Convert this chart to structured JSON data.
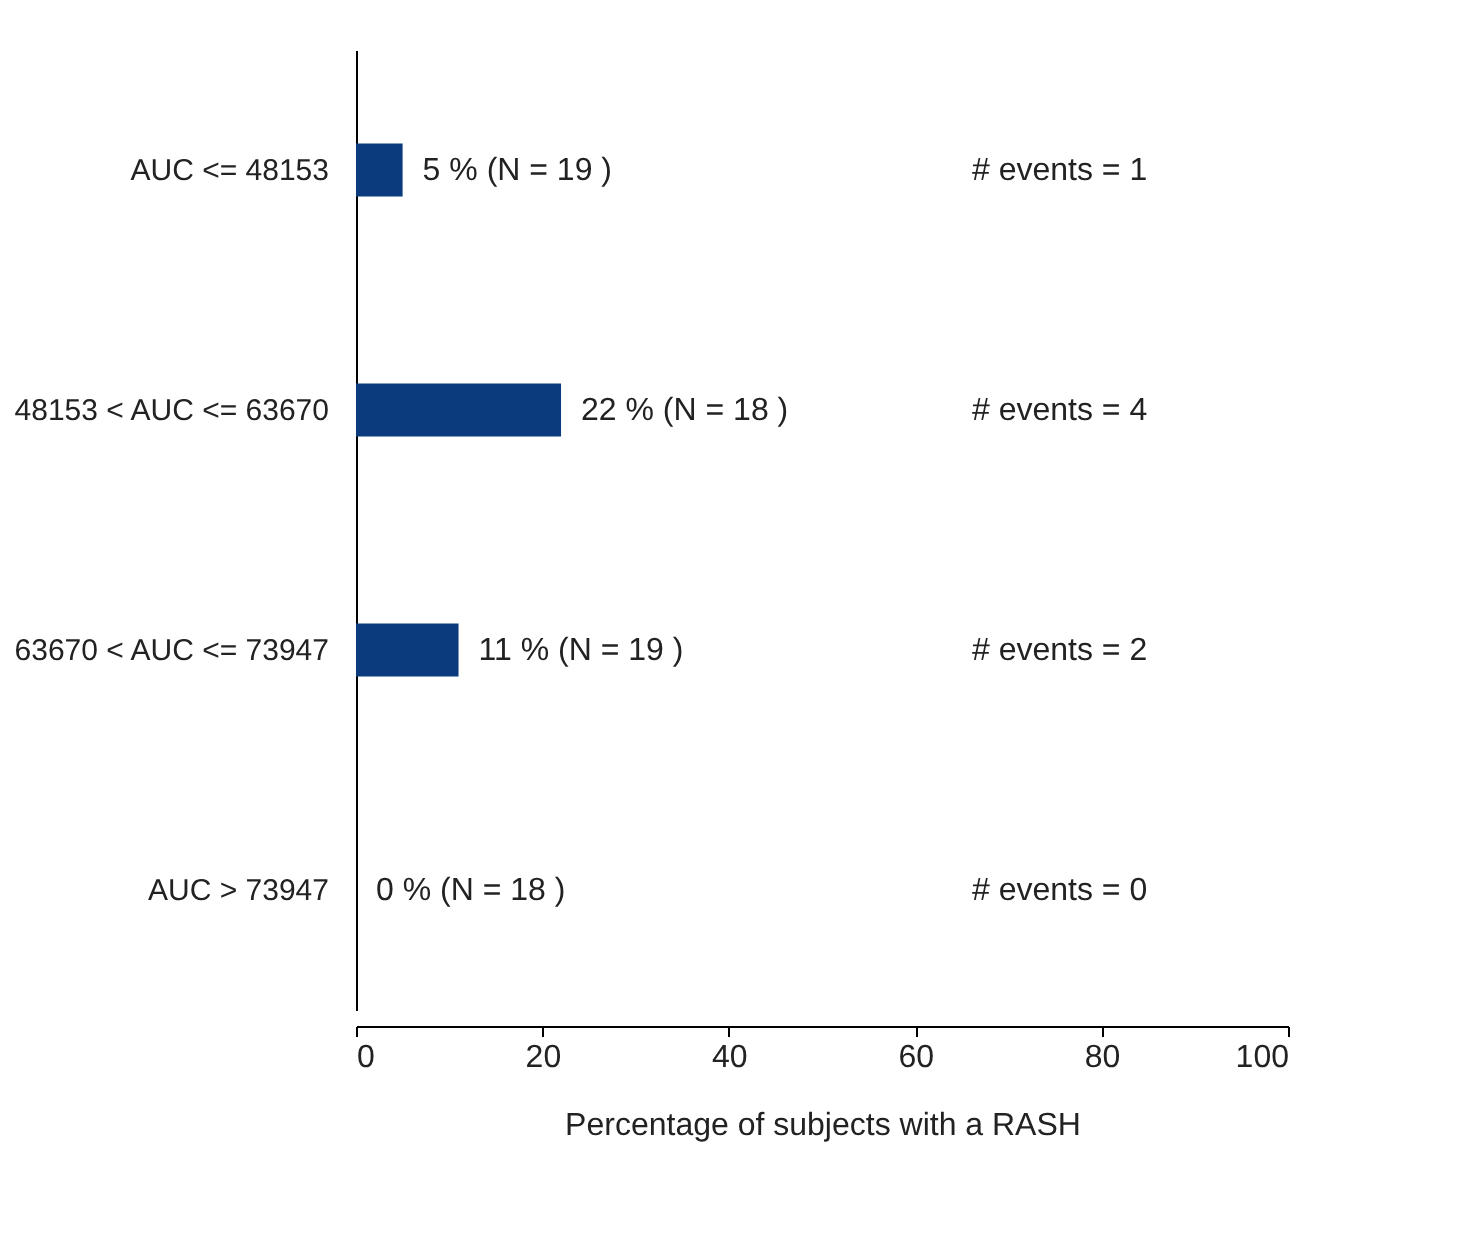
{
  "chart_data": {
    "type": "bar",
    "orientation": "horizontal",
    "categories": [
      "AUC <= 48153",
      "48153 < AUC <= 63670",
      "63670 < AUC <= 73947",
      "AUC > 73947"
    ],
    "values": [
      5,
      22,
      11,
      0
    ],
    "value_labels": [
      "5 % (N = 19 )",
      "22 % (N = 18 )",
      "11 % (N = 19 )",
      "0 % (N = 18 )"
    ],
    "color": "#0b3b7c",
    "xlabel": "Percentage of subjects with a RASH",
    "xlim": [
      0,
      100
    ],
    "xticks": [
      0,
      20,
      40,
      60,
      80,
      100
    ],
    "grid": false,
    "annotations": [
      "# events =  1",
      "# events =  4",
      "# events =  2",
      "# events =  0"
    ]
  }
}
